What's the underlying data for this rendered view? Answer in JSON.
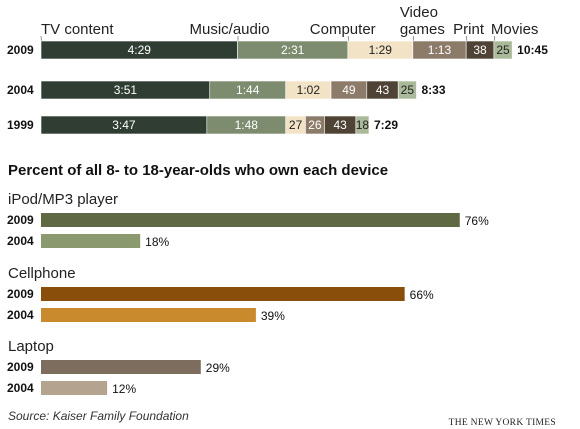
{
  "chart_data": [
    {
      "type": "bar",
      "orientation": "horizontal",
      "stacked": true,
      "unit": "hours:minutes per day",
      "categories": [
        "TV content",
        "Music/audio",
        "Computer",
        "Video games",
        "Print",
        "Movies"
      ],
      "category_header_lines": [
        [
          "TV content"
        ],
        [
          "Music/audio"
        ],
        [
          "Computer"
        ],
        [
          "Video",
          "games"
        ],
        [
          "Print"
        ],
        [
          "Movies"
        ]
      ],
      "series_colors": [
        "#2f3d32",
        "#7d8c6e",
        "#f2e3c6",
        "#8d7b6a",
        "#4f4336",
        "#a9b999"
      ],
      "label_colors": [
        "#ffffff",
        "#ffffff",
        "#222222",
        "#ffffff",
        "#ffffff",
        "#222222"
      ],
      "rows": [
        {
          "year": "2009",
          "segments": [
            "4:29",
            "2:31",
            "1:29",
            "1:13",
            "38",
            "25"
          ],
          "minutes": [
            269,
            151,
            89,
            73,
            38,
            25
          ],
          "total": "10:45"
        },
        {
          "year": "2004",
          "segments": [
            "3:51",
            "1:44",
            "1:02",
            "49",
            "43",
            "25"
          ],
          "minutes": [
            231,
            104,
            62,
            49,
            43,
            25
          ],
          "total": "8:33"
        },
        {
          "year": "1999",
          "segments": [
            "3:47",
            "1:48",
            "27",
            "26",
            "43",
            "18"
          ],
          "minutes": [
            227,
            108,
            27,
            26,
            43,
            18
          ],
          "total": "7:29"
        }
      ]
    },
    {
      "type": "bar",
      "orientation": "horizontal",
      "title": "Percent of all 8- to 18-year-olds who own each device",
      "groups": [
        {
          "device": "iPod/MP3 player",
          "bars": [
            {
              "year": "2009",
              "value": 76,
              "label": "76%",
              "color": "#5f6a45"
            },
            {
              "year": "2004",
              "value": 18,
              "label": "18%",
              "color": "#8a9a6e"
            }
          ]
        },
        {
          "device": "Cellphone",
          "bars": [
            {
              "year": "2009",
              "value": 66,
              "label": "66%",
              "color": "#8a4e0b"
            },
            {
              "year": "2004",
              "value": 39,
              "label": "39%",
              "color": "#c98a2e"
            }
          ]
        },
        {
          "device": "Laptop",
          "bars": [
            {
              "year": "2009",
              "value": 29,
              "label": "29%",
              "color": "#7d6d5e"
            },
            {
              "year": "2004",
              "value": 12,
              "label": "12%",
              "color": "#b4a38e"
            }
          ]
        }
      ]
    }
  ],
  "source": "Source: Kaiser Family Foundation",
  "credit": "THE NEW YORK TIMES"
}
